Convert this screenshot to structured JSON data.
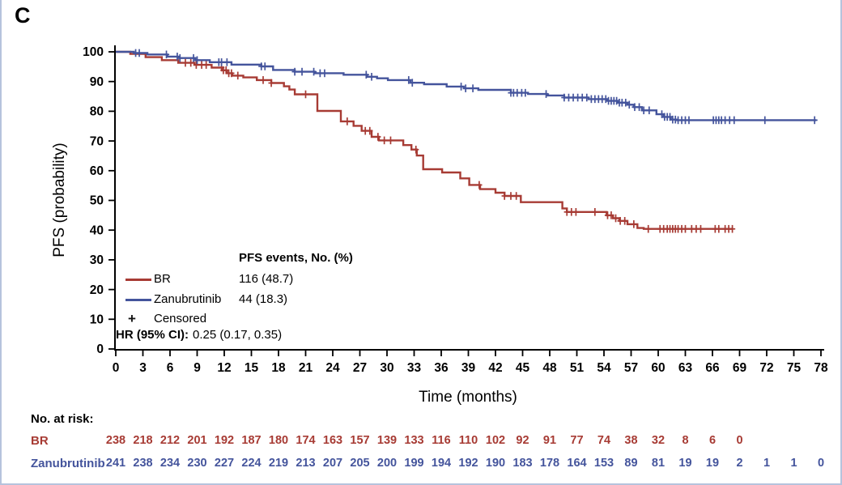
{
  "panel_label": "C",
  "figure": {
    "border_color": "#b6c3dd",
    "background": "#ffffff",
    "axis_color": "#000000"
  },
  "chart_data": {
    "type": "line",
    "subtype": "kaplan_meier_step",
    "title": "",
    "xlabel": "Time (months)",
    "ylabel": "PFS (probability)",
    "xlim": [
      0,
      78
    ],
    "ylim": [
      0,
      100
    ],
    "xticks": [
      0,
      3,
      6,
      9,
      12,
      15,
      18,
      21,
      24,
      27,
      30,
      33,
      36,
      39,
      42,
      45,
      48,
      51,
      54,
      57,
      60,
      63,
      66,
      69,
      72,
      75,
      78
    ],
    "yticks": [
      0,
      10,
      20,
      30,
      40,
      50,
      60,
      70,
      80,
      90,
      100
    ],
    "grid": false,
    "series": [
      {
        "name": "BR",
        "color": "#a73b34",
        "end_time": 68.3,
        "steps": [
          [
            0,
            100
          ],
          [
            1.6,
            99.3
          ],
          [
            3.3,
            98.2
          ],
          [
            5.1,
            97.2
          ],
          [
            6.9,
            96.3
          ],
          [
            8.7,
            95.6
          ],
          [
            10.6,
            94.7
          ],
          [
            11.8,
            93.8
          ],
          [
            12.3,
            92.8
          ],
          [
            12.9,
            92.0
          ],
          [
            14.1,
            91.4
          ],
          [
            15.6,
            90.5
          ],
          [
            17.2,
            89.5
          ],
          [
            18.6,
            88.4
          ],
          [
            19.2,
            87.3
          ],
          [
            19.8,
            85.7
          ],
          [
            22.3,
            80.1
          ],
          [
            24.9,
            76.6
          ],
          [
            26.3,
            75.1
          ],
          [
            27.2,
            73.4
          ],
          [
            28.3,
            71.4
          ],
          [
            29.1,
            70.2
          ],
          [
            31.8,
            68.6
          ],
          [
            32.7,
            67.1
          ],
          [
            33.3,
            65.1
          ],
          [
            34.0,
            60.5
          ],
          [
            36.1,
            59.4
          ],
          [
            38.1,
            57.4
          ],
          [
            39.1,
            55.2
          ],
          [
            40.3,
            53.8
          ],
          [
            42.0,
            52.6
          ],
          [
            43.0,
            51.5
          ],
          [
            44.8,
            49.4
          ],
          [
            49.4,
            47.3
          ],
          [
            49.9,
            46.1
          ],
          [
            54.3,
            45.0
          ],
          [
            55.0,
            44.0
          ],
          [
            55.7,
            43.1
          ],
          [
            56.6,
            42.0
          ],
          [
            57.7,
            40.7
          ],
          [
            58.4,
            40.4
          ]
        ],
        "censor_times": [
          7.7,
          8.3,
          8.9,
          9.5,
          10.0,
          11.7,
          11.9,
          12.2,
          12.5,
          12.8,
          13.5,
          16.3,
          17.2,
          21.0,
          25.6,
          27.6,
          28.1,
          29.0,
          29.7,
          30.4,
          33.2,
          40.2,
          43.0,
          43.7,
          44.3,
          49.9,
          50.4,
          50.9,
          53.0,
          54.4,
          54.8,
          55.3,
          55.8,
          56.3,
          57.3,
          58.9,
          60.2,
          60.6,
          61.0,
          61.3,
          61.6,
          61.9,
          62.2,
          62.6,
          63.0,
          63.7,
          64.2,
          64.7,
          66.3,
          66.7,
          67.4,
          67.8,
          68.2
        ]
      },
      {
        "name": "Zanubrutinib",
        "color": "#44549c",
        "end_time": 77.5,
        "steps": [
          [
            0,
            100
          ],
          [
            2.0,
            99.6
          ],
          [
            3.5,
            99.1
          ],
          [
            5.7,
            98.4
          ],
          [
            7.0,
            97.9
          ],
          [
            8.8,
            97.2
          ],
          [
            10.4,
            96.5
          ],
          [
            12.8,
            95.7
          ],
          [
            16.1,
            95.1
          ],
          [
            17.4,
            93.9
          ],
          [
            19.8,
            93.3
          ],
          [
            22.0,
            92.8
          ],
          [
            25.2,
            92.3
          ],
          [
            27.8,
            91.6
          ],
          [
            28.9,
            91.1
          ],
          [
            30.1,
            90.5
          ],
          [
            32.6,
            89.6
          ],
          [
            34.1,
            89.1
          ],
          [
            36.6,
            88.3
          ],
          [
            38.5,
            87.7
          ],
          [
            40.1,
            87.2
          ],
          [
            43.7,
            86.2
          ],
          [
            45.6,
            85.8
          ],
          [
            47.7,
            85.3
          ],
          [
            49.6,
            84.6
          ],
          [
            52.3,
            84.1
          ],
          [
            54.4,
            83.5
          ],
          [
            55.5,
            82.9
          ],
          [
            56.6,
            82.2
          ],
          [
            57.3,
            81.4
          ],
          [
            58.2,
            80.3
          ],
          [
            59.8,
            79.0
          ],
          [
            60.6,
            78.1
          ],
          [
            61.4,
            77.2
          ],
          [
            62.0,
            77.0
          ]
        ],
        "censor_times": [
          2.2,
          2.6,
          5.6,
          6.8,
          7.1,
          8.6,
          9.0,
          11.4,
          11.7,
          12.3,
          16.1,
          16.5,
          19.8,
          20.6,
          21.9,
          22.6,
          23.1,
          27.7,
          28.3,
          32.4,
          32.8,
          38.2,
          38.7,
          39.5,
          43.7,
          44.0,
          44.4,
          44.9,
          45.3,
          47.6,
          49.6,
          50.1,
          50.6,
          51.1,
          51.6,
          52.1,
          52.6,
          53.0,
          53.4,
          53.8,
          54.2,
          54.5,
          54.8,
          55.1,
          55.4,
          55.7,
          56.0,
          56.4,
          56.8,
          57.4,
          57.9,
          58.4,
          59.0,
          60.4,
          60.7,
          61.0,
          61.3,
          61.6,
          61.9,
          62.2,
          62.6,
          63.0,
          63.4,
          66.1,
          66.4,
          66.7,
          67.0,
          67.4,
          67.9,
          68.4,
          71.8,
          77.3
        ]
      }
    ],
    "legend": {
      "events_header": "PFS events, No. (%)",
      "items": [
        {
          "label": "BR",
          "value": "116 (48.7)",
          "marker": "line"
        },
        {
          "label": "Zanubrutinib",
          "value": "44 (18.3)",
          "marker": "line"
        },
        {
          "label": "Censored",
          "value": "",
          "marker": "plus"
        }
      ],
      "censored_marker": "+",
      "hr_label": "HR (95% CI):",
      "hr_value": "0.25 (0.17, 0.35)"
    },
    "at_risk": {
      "header": "No. at risk:",
      "interval_months": 3,
      "rows": [
        {
          "name": "BR",
          "color": "#a73b34",
          "values": [
            238,
            218,
            212,
            201,
            192,
            187,
            180,
            174,
            163,
            157,
            139,
            133,
            116,
            110,
            102,
            92,
            91,
            77,
            74,
            38,
            32,
            8,
            6,
            0
          ]
        },
        {
          "name": "Zanubrutinib",
          "color": "#44549c",
          "values": [
            241,
            238,
            234,
            230,
            227,
            224,
            219,
            213,
            207,
            205,
            200,
            199,
            194,
            192,
            190,
            183,
            178,
            164,
            153,
            89,
            81,
            19,
            19,
            2,
            1,
            1,
            0
          ]
        }
      ]
    }
  }
}
